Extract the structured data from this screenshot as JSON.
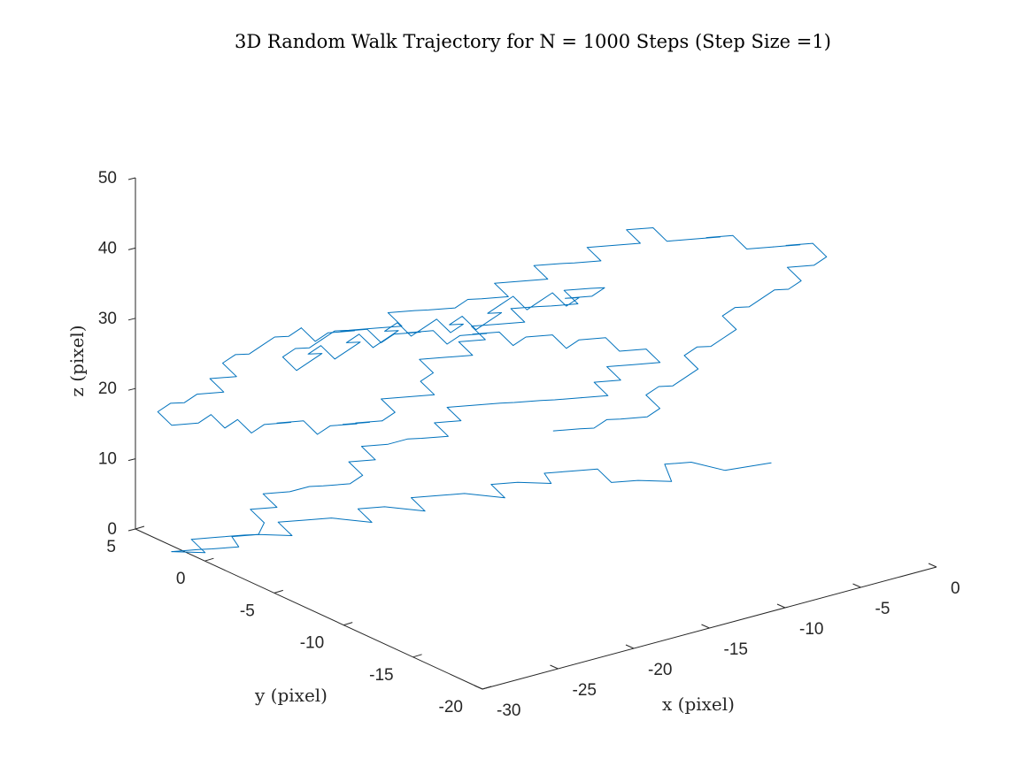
{
  "chart_data": {
    "type": "line3d",
    "title": "3D Random Walk Trajectory for N = 1000 Steps (Step Size =1)",
    "xlabel": "x (pixel)",
    "ylabel": "y (pixel)",
    "zlabel": "z (pixel)",
    "xlim": [
      -30,
      0
    ],
    "ylim": [
      -20,
      5
    ],
    "zlim": [
      0,
      50
    ],
    "xticks": [
      -30,
      -25,
      -20,
      -15,
      -10,
      -5,
      0
    ],
    "yticks": [
      -20,
      -15,
      -10,
      -5,
      0,
      5
    ],
    "zticks": [
      0,
      10,
      20,
      30,
      40,
      50
    ],
    "grid": false,
    "series": [
      {
        "color": "#0072BD",
        "steps": 1000,
        "step_size": 1,
        "segments": [
          {
            "x": [
              -1.3,
              -3.9,
              -5.2,
              -6.5,
              -6.5,
              -7.8,
              -9.1,
              -9.1,
              -10.4,
              -11.7,
              -11.7,
              -13.0,
              -14.3,
              -14.3,
              -15.6,
              -16.9,
              -18.2,
              -18.2,
              -19.5,
              -20.8,
              -20.8,
              -22.1,
              -23.4,
              -24.7,
              -24.7,
              -26.0,
              -26.0,
              -27.3,
              -28.6,
              -28.6,
              -29.9
            ],
            "y": [
              -9.5,
              -9.0,
              -8.0,
              -7.5,
              -8.0,
              -7.0,
              -6.5,
              -5.5,
              -5.0,
              -4.5,
              -5.0,
              -4.0,
              -3.5,
              -4.5,
              -3.0,
              -2.5,
              -2.0,
              -3.0,
              -1.5,
              -1.0,
              -2.0,
              -0.5,
              0.0,
              0.5,
              -0.5,
              0.5,
              1.5,
              2.0,
              2.5,
              1.5,
              2.5
            ],
            "z": [
              6,
              6,
              7,
              7,
              5,
              5,
              5,
              6,
              6,
              6,
              5,
              5,
              5,
              4,
              4,
              4,
              4,
              3,
              3,
              3,
              2,
              2,
              2,
              2,
              1,
              1,
              0,
              0,
              0,
              -1,
              -1
            ]
          },
          {
            "x": [
              -29.9,
              -28.6,
              -28.6,
              -27.3,
              -27.3,
              -26.0,
              -24.7,
              -24.7,
              -23.4,
              -23.4,
              -22.1,
              -20.8,
              -20.8,
              -19.5,
              -18.2,
              -18.2,
              -16.9,
              -16.9,
              -15.6,
              -14.3,
              -14.3,
              -13.0,
              -13.0,
              -11.7,
              -11.7,
              -10.4,
              -9.1,
              -9.1,
              -7.8,
              -7.8,
              -6.5
            ],
            "y": [
              2.5,
              2.0,
              1.0,
              0.5,
              1.0,
              0.5,
              1.5,
              2.5,
              2.0,
              3.0,
              2.5,
              2.5,
              1.5,
              1.0,
              1.5,
              2.5,
              2.0,
              3.0,
              2.5,
              2.5,
              1.5,
              1.0,
              2.0,
              1.5,
              2.5,
              2.0,
              1.5,
              0.5,
              0.0,
              -1.0,
              -1.5
            ],
            "z": [
              -1,
              -1,
              0,
              0,
              1,
              1,
              1,
              2,
              2,
              3,
              3,
              3,
              4,
              4,
              4,
              5,
              5,
              6,
              6,
              6,
              7,
              7,
              8,
              8,
              9,
              9,
              9,
              10,
              10,
              11,
              11
            ]
          },
          {
            "x": [
              -6.5,
              -5.2,
              -5.2,
              -3.9,
              -3.9,
              -2.6,
              -1.3,
              -1.3,
              -2.6,
              -2.6,
              -3.9,
              -5.2,
              -5.2,
              -6.5,
              -7.8,
              -7.8,
              -9.1,
              -9.1,
              -10.4,
              -11.7,
              -11.7,
              -13.0,
              -13.0,
              -14.3,
              -15.6,
              -15.6,
              -16.9,
              -16.9,
              -18.2,
              -19.5,
              -19.5
            ],
            "y": [
              -1.5,
              -2.0,
              -1.0,
              -1.5,
              -0.5,
              -1.0,
              -1.5,
              -0.5,
              0.0,
              1.0,
              1.5,
              1.0,
              2.0,
              2.5,
              2.0,
              3.0,
              3.5,
              2.5,
              3.0,
              2.5,
              3.5,
              4.0,
              3.0,
              3.5,
              3.0,
              4.0,
              4.5,
              3.5,
              4.0,
              3.5,
              4.5
            ],
            "z": [
              11,
              11,
              12,
              12,
              13,
              13,
              13,
              14,
              14,
              15,
              15,
              15,
              16,
              16,
              16,
              17,
              17,
              18,
              18,
              18,
              19,
              19,
              20,
              20,
              20,
              21,
              21,
              22,
              22,
              22,
              23
            ]
          },
          {
            "x": [
              -19.5,
              -20.8,
              -20.8,
              -22.1,
              -23.4,
              -23.4,
              -24.7,
              -24.7,
              -26.0,
              -26.0,
              -27.3,
              -28.6,
              -28.6,
              -29.9,
              -29.9,
              -28.6,
              -27.3,
              -27.3,
              -26.0,
              -26.0,
              -24.7,
              -23.4,
              -23.4,
              -22.1,
              -22.1,
              -20.8,
              -19.5,
              -19.5,
              -18.2,
              -18.2,
              -16.9
            ],
            "y": [
              4.5,
              4.0,
              5.0,
              4.5,
              4.0,
              5.0,
              4.5,
              3.5,
              4.0,
              3.0,
              3.5,
              3.0,
              4.0,
              3.5,
              2.5,
              2.0,
              2.5,
              1.5,
              2.0,
              1.0,
              1.5,
              1.0,
              2.0,
              1.5,
              0.5,
              1.0,
              0.5,
              1.5,
              1.0,
              2.0,
              1.5
            ],
            "z": [
              23,
              23,
              22,
              22,
              22,
              21,
              21,
              20,
              20,
              19,
              19,
              19,
              18,
              18,
              17,
              17,
              17,
              16,
              16,
              15,
              15,
              15,
              14,
              14,
              13,
              13,
              13,
              12,
              12,
              11,
              11
            ]
          },
          {
            "x": [
              -16.9,
              -15.6,
              -15.6,
              -14.3,
              -13.0,
              -13.0,
              -11.7,
              -11.7,
              -10.4,
              -9.1,
              -9.1,
              -7.8,
              -7.8,
              -6.5,
              -5.2,
              -5.2,
              -3.9,
              -3.9,
              -2.6,
              -2.6,
              -1.3,
              -1.3,
              -2.6,
              -3.9,
              -3.9,
              -5.2,
              -5.2,
              -6.5,
              -7.8,
              -7.8,
              -9.1
            ],
            "y": [
              1.5,
              2.0,
              3.0,
              2.5,
              2.0,
              3.0,
              3.5,
              4.5,
              4.0,
              3.5,
              4.5,
              4.0,
              5.0,
              4.5,
              4.0,
              5.0,
              4.5,
              3.5,
              3.0,
              4.0,
              3.5,
              2.5,
              2.0,
              2.5,
              1.5,
              1.0,
              2.0,
              1.5,
              1.0,
              2.0,
              1.5
            ],
            "z": [
              11,
              11,
              12,
              12,
              12,
              13,
              13,
              14,
              14,
              14,
              15,
              15,
              16,
              16,
              16,
              17,
              17,
              18,
              18,
              19,
              19,
              20,
              20,
              20,
              21,
              21,
              22,
              22,
              22,
              23,
              23
            ]
          },
          {
            "x": [
              -9.1,
              -10.4,
              -10.4,
              -11.7,
              -13.0,
              -13.0,
              -14.3,
              -14.3,
              -15.6,
              -15.6,
              -16.9,
              -18.2,
              -18.2,
              -19.5,
              -19.5,
              -20.8,
              -22.1,
              -22.1,
              -23.4,
              -23.4,
              -24.7,
              -26.0,
              -26.0,
              -27.3,
              -27.3,
              -28.6,
              -29.9,
              -29.9,
              -28.6,
              -28.6,
              -27.3
            ],
            "y": [
              1.5,
              1.0,
              0.0,
              -0.5,
              -1.0,
              0.0,
              -0.5,
              -1.5,
              -2.0,
              -1.0,
              -1.5,
              -2.0,
              -1.0,
              -1.5,
              -2.5,
              -3.0,
              -3.5,
              -2.5,
              -3.0,
              -4.0,
              -4.5,
              -5.0,
              -4.0,
              -4.5,
              -5.5,
              -6.0,
              -6.5,
              -5.5,
              -5.0,
              -6.0,
              -5.5
            ],
            "z": [
              23,
              23,
              24,
              24,
              24,
              25,
              25,
              26,
              26,
              27,
              27,
              27,
              28,
              28,
              29,
              29,
              29,
              30,
              30,
              31,
              31,
              31,
              32,
              32,
              33,
              33,
              33,
              34,
              34,
              35,
              35
            ]
          },
          {
            "x": [
              -27.3,
              -26.0,
              -26.0,
              -24.7,
              -23.4,
              -23.4,
              -22.1,
              -22.1,
              -20.8,
              -19.5,
              -19.5,
              -18.2,
              -18.2,
              -16.9,
              -15.6,
              -15.6,
              -14.3,
              -14.3,
              -13.0,
              -13.0,
              -11.7,
              -10.4,
              -10.4,
              -9.1,
              -9.1,
              -7.8,
              -6.5,
              -6.5,
              -5.2,
              -5.2,
              -3.9
            ],
            "y": [
              -5.5,
              -5.0,
              -6.0,
              -6.5,
              -7.0,
              -6.0,
              -6.5,
              -7.5,
              -8.0,
              -7.5,
              -8.5,
              -9.0,
              -8.0,
              -8.5,
              -9.0,
              -8.0,
              -8.5,
              -9.5,
              -10.0,
              -9.0,
              -9.5,
              -10.0,
              -9.0,
              -9.5,
              -10.5,
              -11.0,
              -11.5,
              -10.5,
              -11.0,
              -12.0,
              -12.5
            ],
            "z": [
              35,
              35,
              36,
              36,
              36,
              37,
              37,
              38,
              38,
              38,
              39,
              39,
              40,
              40,
              40,
              41,
              41,
              42,
              42,
              43,
              43,
              43,
              44,
              44,
              43,
              43,
              43,
              42,
              42,
              41,
              41
            ]
          },
          {
            "x": [
              -3.9,
              -2.6,
              -2.6,
              -1.3,
              -1.3,
              -2.6,
              -3.9,
              -3.9,
              -5.2,
              -5.2,
              -6.5,
              -7.8,
              -7.8,
              -9.1,
              -9.1,
              -10.4,
              -11.7,
              -11.7,
              -13.0,
              -13.0,
              -14.3,
              -15.6,
              -15.6,
              -16.9,
              -16.9,
              -18.2,
              -19.5,
              -19.5,
              -20.8,
              -20.8,
              -22.1
            ],
            "y": [
              -12.5,
              -13.0,
              -12.0,
              -12.5,
              -13.5,
              -14.0,
              -13.5,
              -14.5,
              -15.0,
              -14.0,
              -14.5,
              -15.0,
              -14.0,
              -14.5,
              -15.5,
              -16.0,
              -16.5,
              -15.5,
              -16.0,
              -17.0,
              -17.5,
              -18.0,
              -17.0,
              -17.5,
              -18.5,
              -19.0,
              -18.5,
              -17.5,
              -18.0,
              -17.0,
              -16.5
            ],
            "z": [
              41,
              41,
              40,
              40,
              39,
              39,
              39,
              38,
              38,
              37,
              37,
              37,
              36,
              36,
              35,
              35,
              35,
              34,
              34,
              33,
              33,
              33,
              32,
              32,
              31,
              31,
              31,
              30,
              30,
              29,
              29
            ]
          }
        ]
      }
    ]
  }
}
